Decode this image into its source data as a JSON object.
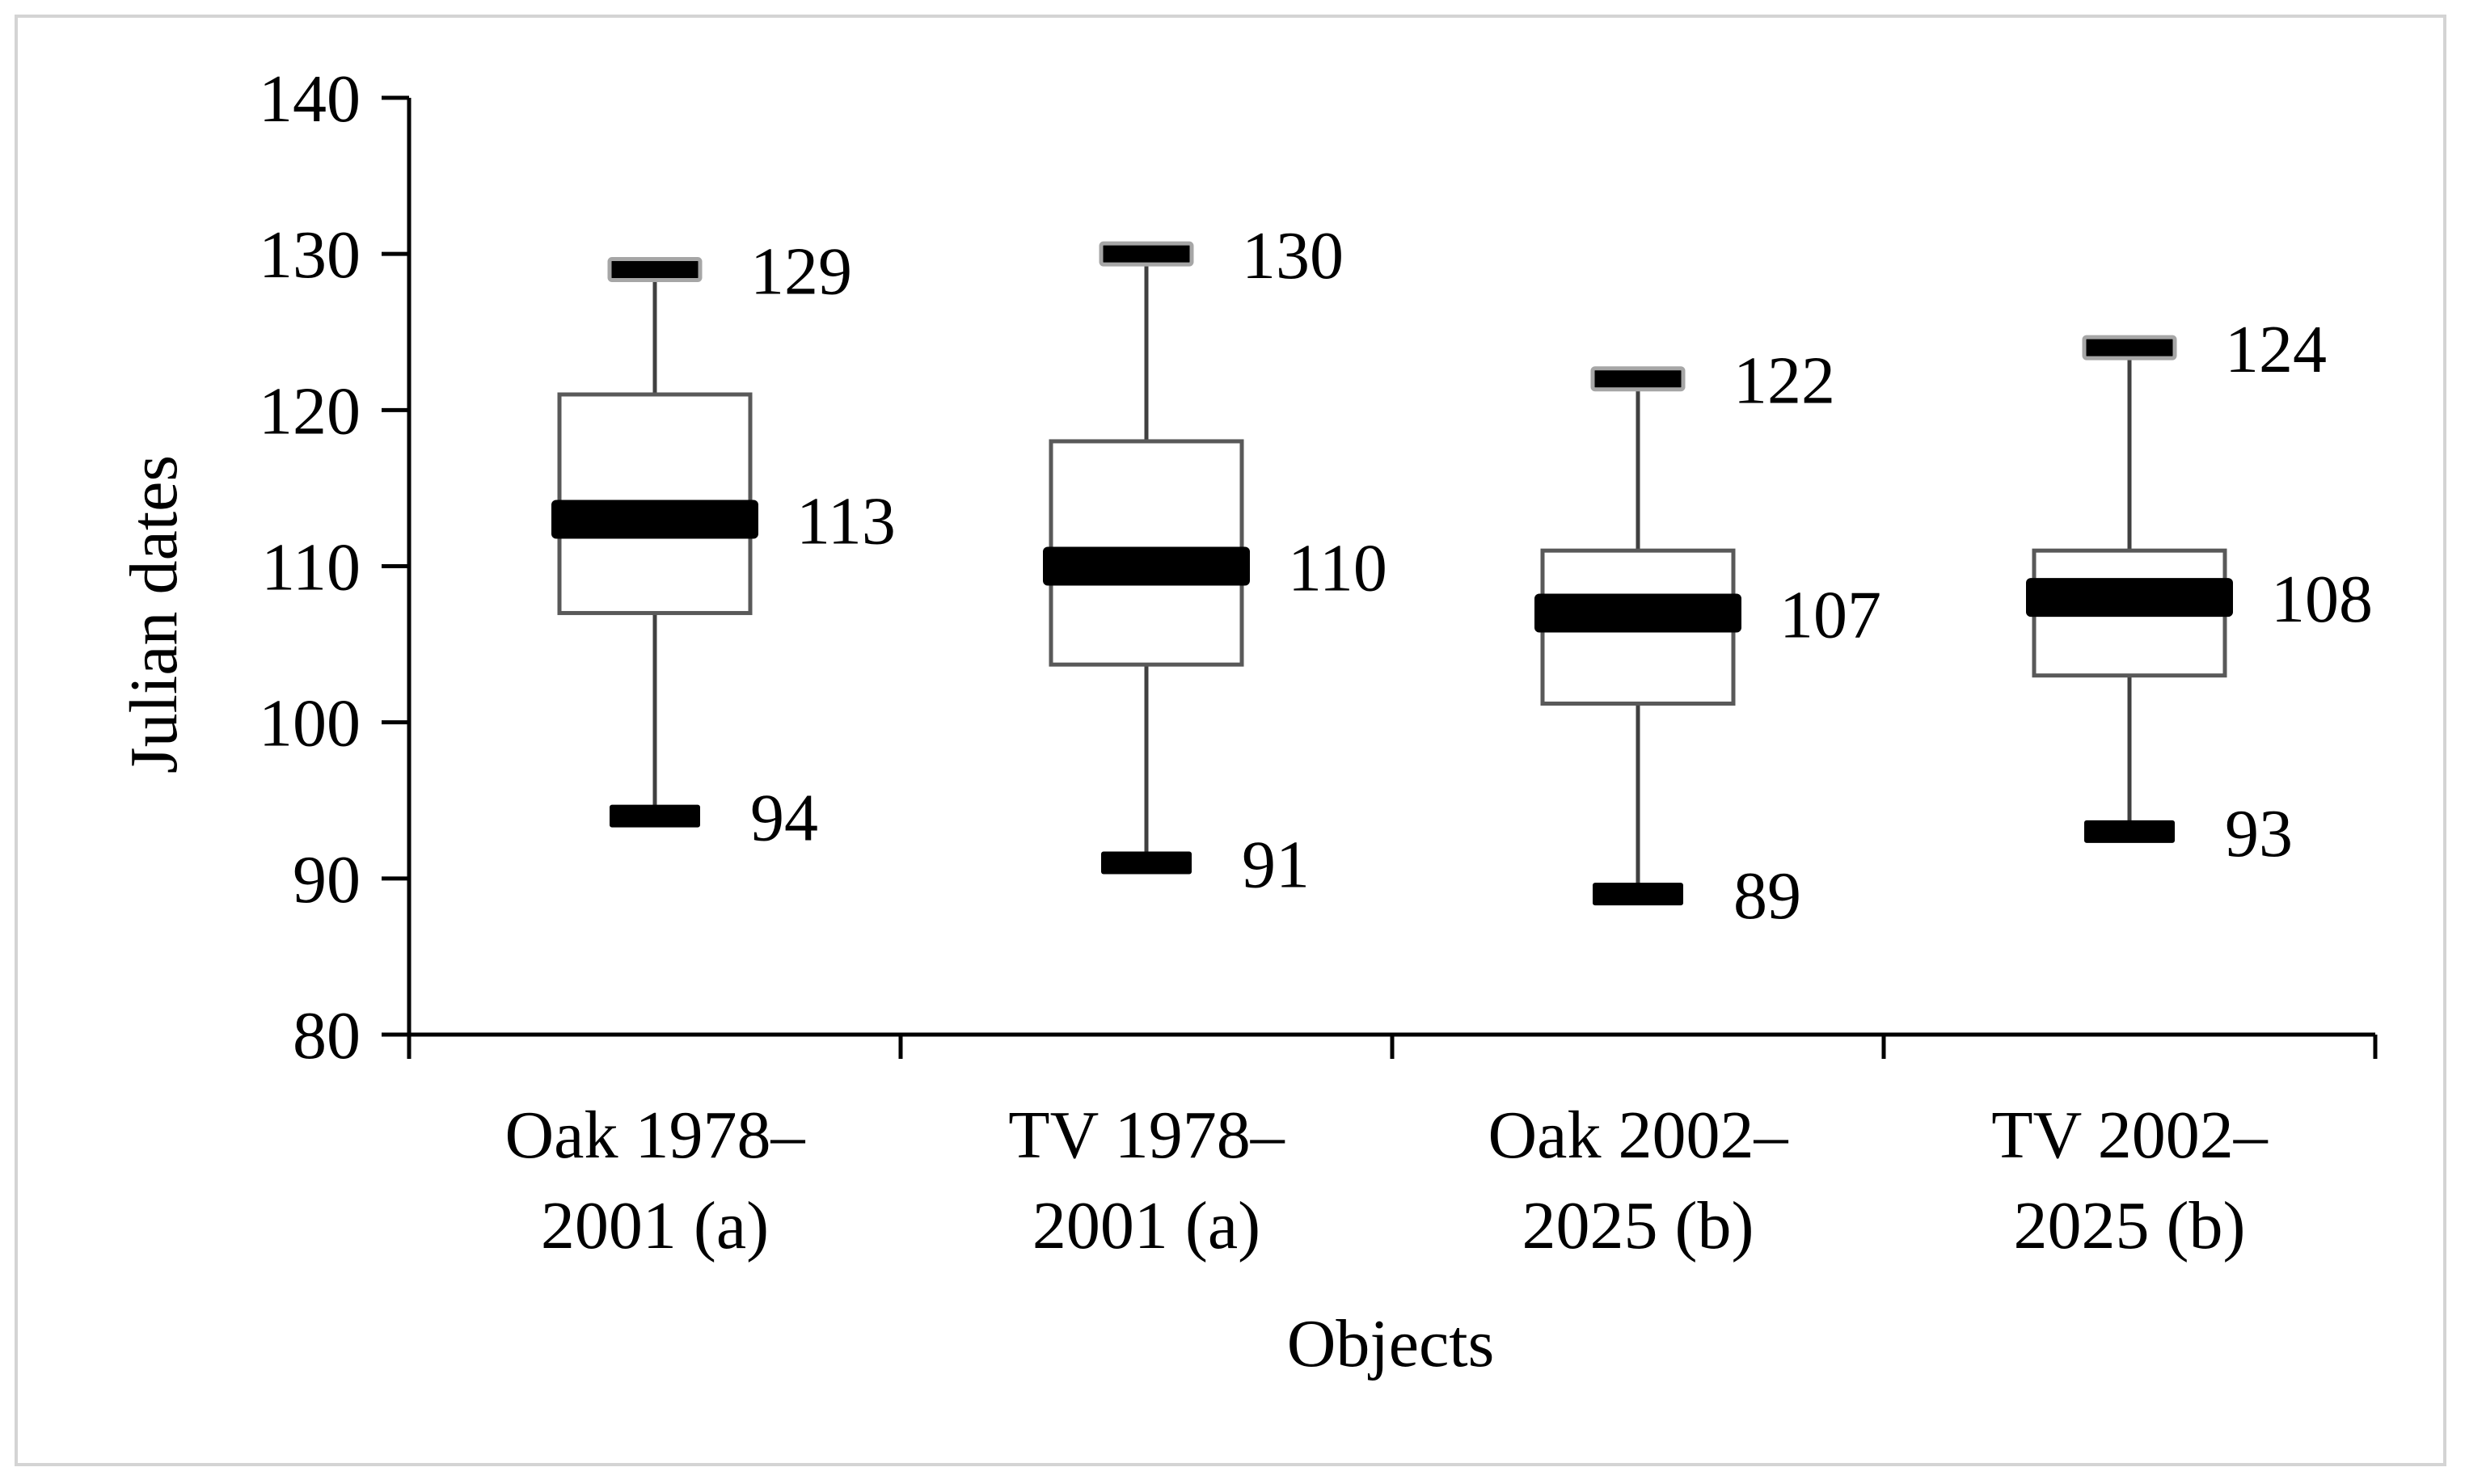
{
  "chart_data": {
    "type": "box",
    "title": "",
    "xlabel": "Objects",
    "ylabel": "Julian dates",
    "ylim": [
      80,
      140
    ],
    "yticks": [
      80,
      90,
      100,
      110,
      120,
      130,
      140
    ],
    "grid": false,
    "legend": "none",
    "categories": [
      [
        "Oak 1978–",
        "2001 (a)"
      ],
      [
        "TV 1978–",
        "2001 (a)"
      ],
      [
        "Oak 2002–",
        "2025 (b)"
      ],
      [
        "TV 2002–",
        "2025 (b)"
      ]
    ],
    "boxes": [
      {
        "min": 94,
        "q1": 107,
        "median": 113,
        "q3": 121,
        "max": 129,
        "labels": {
          "max": "129",
          "median": "113",
          "min": "94"
        }
      },
      {
        "min": 91,
        "q1": 103.7,
        "median": 110,
        "q3": 118,
        "max": 130,
        "labels": {
          "max": "130",
          "median": "110",
          "min": "91"
        }
      },
      {
        "min": 89,
        "q1": 101.2,
        "median": 107,
        "q3": 111,
        "max": 122,
        "labels": {
          "max": "122",
          "median": "107",
          "min": "89"
        }
      },
      {
        "min": 93,
        "q1": 103,
        "median": 108,
        "q3": 111,
        "max": 124,
        "labels": {
          "max": "124",
          "median": "108",
          "min": "93"
        }
      }
    ],
    "colors": {
      "box_edge": "#595959",
      "whisker": "#404040",
      "median": "#000000",
      "cap": "#000000",
      "cap_outline": "#a6a6a6",
      "axis": "#000000"
    }
  }
}
